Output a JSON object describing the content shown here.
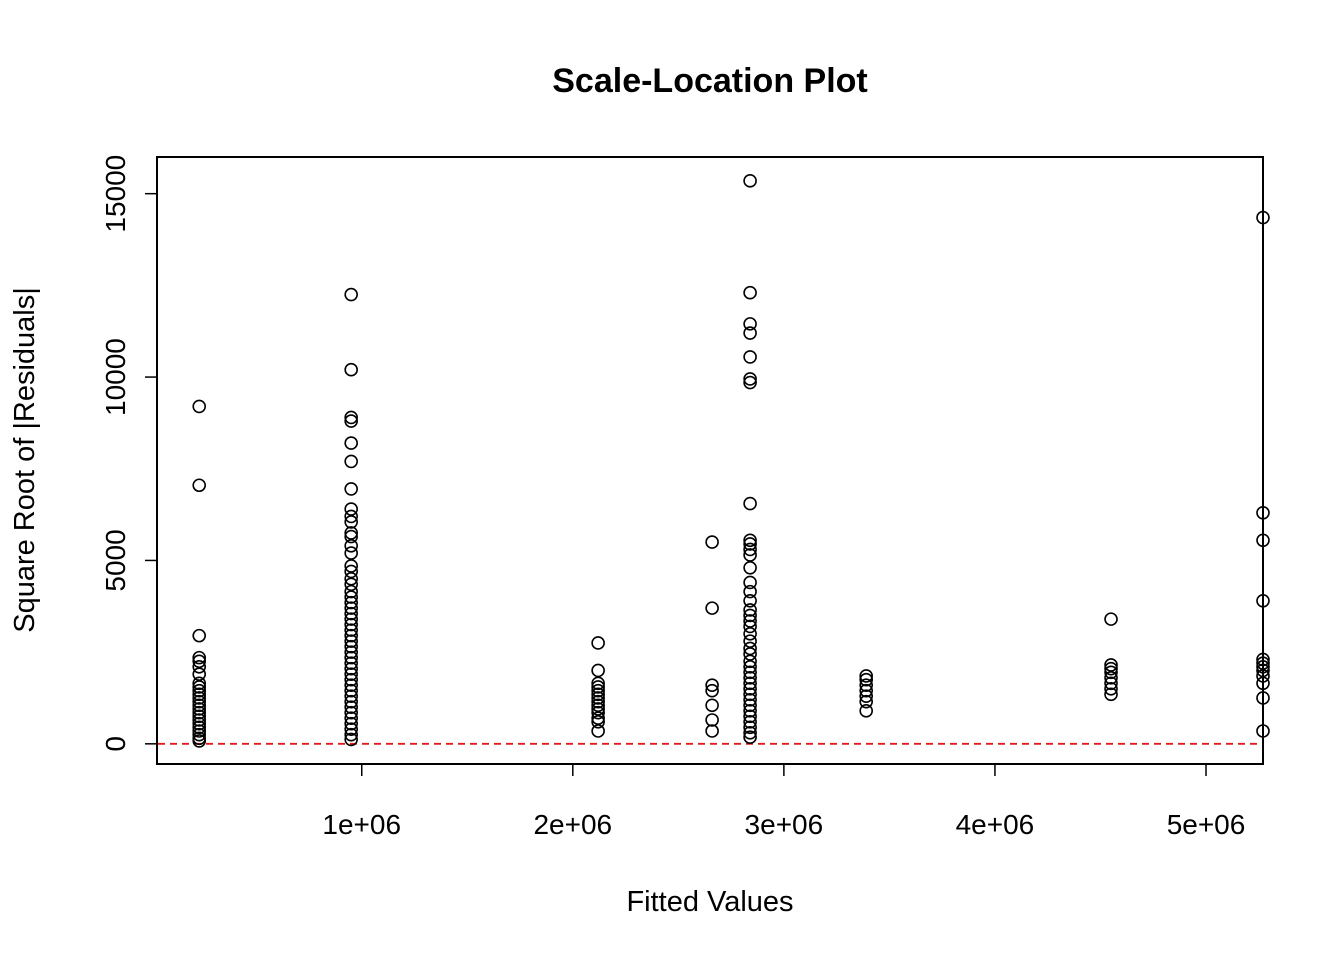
{
  "chart_data": {
    "type": "scatter",
    "title": "Scale-Location Plot",
    "xlabel": "Fitted Values",
    "ylabel": "Square Root of |Residuals|",
    "xlim": [
      30000,
      5270000
    ],
    "ylim": [
      -550,
      16000
    ],
    "x_ticks": [
      {
        "value": 1000000,
        "label": "1e+06"
      },
      {
        "value": 2000000,
        "label": "2e+06"
      },
      {
        "value": 3000000,
        "label": "3e+06"
      },
      {
        "value": 4000000,
        "label": "4e+06"
      },
      {
        "value": 5000000,
        "label": "5e+06"
      }
    ],
    "y_ticks": [
      {
        "value": 0,
        "label": "0"
      },
      {
        "value": 5000,
        "label": "5000"
      },
      {
        "value": 10000,
        "label": "10000"
      },
      {
        "value": 15000,
        "label": "15000"
      }
    ],
    "reference_line": {
      "y": 0,
      "color": "#e41a1c",
      "style": "dashed"
    },
    "grid": false,
    "series": [
      {
        "marker": "open-circle",
        "color": "#000000",
        "points": [
          [
            230000,
            9200
          ],
          [
            230000,
            7050
          ],
          [
            230000,
            2950
          ],
          [
            230000,
            2350
          ],
          [
            230000,
            2250
          ],
          [
            230000,
            2100
          ],
          [
            230000,
            1900
          ],
          [
            230000,
            1650
          ],
          [
            230000,
            1550
          ],
          [
            230000,
            1450
          ],
          [
            230000,
            1350
          ],
          [
            230000,
            1250
          ],
          [
            230000,
            1150
          ],
          [
            230000,
            1050
          ],
          [
            230000,
            950
          ],
          [
            230000,
            850
          ],
          [
            230000,
            750
          ],
          [
            230000,
            650
          ],
          [
            230000,
            550
          ],
          [
            230000,
            450
          ],
          [
            230000,
            350
          ],
          [
            230000,
            250
          ],
          [
            230000,
            150
          ],
          [
            230000,
            80
          ],
          [
            950000,
            12250
          ],
          [
            950000,
            10200
          ],
          [
            950000,
            8900
          ],
          [
            950000,
            8800
          ],
          [
            950000,
            8200
          ],
          [
            950000,
            7700
          ],
          [
            950000,
            6950
          ],
          [
            950000,
            6400
          ],
          [
            950000,
            6200
          ],
          [
            950000,
            6050
          ],
          [
            950000,
            5750
          ],
          [
            950000,
            5650
          ],
          [
            950000,
            5400
          ],
          [
            950000,
            5200
          ],
          [
            950000,
            4850
          ],
          [
            950000,
            4700
          ],
          [
            950000,
            4500
          ],
          [
            950000,
            4350
          ],
          [
            950000,
            4150
          ],
          [
            950000,
            4000
          ],
          [
            950000,
            3850
          ],
          [
            950000,
            3700
          ],
          [
            950000,
            3550
          ],
          [
            950000,
            3400
          ],
          [
            950000,
            3250
          ],
          [
            950000,
            3100
          ],
          [
            950000,
            2950
          ],
          [
            950000,
            2800
          ],
          [
            950000,
            2650
          ],
          [
            950000,
            2500
          ],
          [
            950000,
            2350
          ],
          [
            950000,
            2200
          ],
          [
            950000,
            2050
          ],
          [
            950000,
            1900
          ],
          [
            950000,
            1750
          ],
          [
            950000,
            1600
          ],
          [
            950000,
            1450
          ],
          [
            950000,
            1300
          ],
          [
            950000,
            1150
          ],
          [
            950000,
            1000
          ],
          [
            950000,
            850
          ],
          [
            950000,
            700
          ],
          [
            950000,
            550
          ],
          [
            950000,
            400
          ],
          [
            950000,
            250
          ],
          [
            950000,
            120
          ],
          [
            2120000,
            2750
          ],
          [
            2120000,
            2000
          ],
          [
            2120000,
            1650
          ],
          [
            2120000,
            1550
          ],
          [
            2120000,
            1450
          ],
          [
            2120000,
            1350
          ],
          [
            2120000,
            1250
          ],
          [
            2120000,
            1150
          ],
          [
            2120000,
            1050
          ],
          [
            2120000,
            950
          ],
          [
            2120000,
            850
          ],
          [
            2120000,
            700
          ],
          [
            2120000,
            600
          ],
          [
            2120000,
            350
          ],
          [
            2660000,
            5500
          ],
          [
            2660000,
            3700
          ],
          [
            2660000,
            1600
          ],
          [
            2660000,
            1450
          ],
          [
            2660000,
            1050
          ],
          [
            2660000,
            650
          ],
          [
            2660000,
            350
          ],
          [
            2840000,
            15350
          ],
          [
            2840000,
            12300
          ],
          [
            2840000,
            11450
          ],
          [
            2840000,
            11200
          ],
          [
            2840000,
            10550
          ],
          [
            2840000,
            9950
          ],
          [
            2840000,
            9850
          ],
          [
            2840000,
            6550
          ],
          [
            2840000,
            5550
          ],
          [
            2840000,
            5450
          ],
          [
            2840000,
            5300
          ],
          [
            2840000,
            5150
          ],
          [
            2840000,
            4800
          ],
          [
            2840000,
            4400
          ],
          [
            2840000,
            4150
          ],
          [
            2840000,
            3900
          ],
          [
            2840000,
            3650
          ],
          [
            2840000,
            3500
          ],
          [
            2840000,
            3350
          ],
          [
            2840000,
            3200
          ],
          [
            2840000,
            3000
          ],
          [
            2840000,
            2800
          ],
          [
            2840000,
            2600
          ],
          [
            2840000,
            2450
          ],
          [
            2840000,
            2250
          ],
          [
            2840000,
            2100
          ],
          [
            2840000,
            1950
          ],
          [
            2840000,
            1800
          ],
          [
            2840000,
            1650
          ],
          [
            2840000,
            1500
          ],
          [
            2840000,
            1350
          ],
          [
            2840000,
            1200
          ],
          [
            2840000,
            1050
          ],
          [
            2840000,
            900
          ],
          [
            2840000,
            750
          ],
          [
            2840000,
            600
          ],
          [
            2840000,
            450
          ],
          [
            2840000,
            300
          ],
          [
            2840000,
            180
          ],
          [
            3390000,
            1850
          ],
          [
            3390000,
            1750
          ],
          [
            3390000,
            1600
          ],
          [
            3390000,
            1450
          ],
          [
            3390000,
            1300
          ],
          [
            3390000,
            1150
          ],
          [
            3390000,
            900
          ],
          [
            4550000,
            3400
          ],
          [
            4550000,
            2150
          ],
          [
            4550000,
            2050
          ],
          [
            4550000,
            1950
          ],
          [
            4550000,
            1800
          ],
          [
            4550000,
            1650
          ],
          [
            4550000,
            1500
          ],
          [
            4550000,
            1350
          ],
          [
            5270000,
            14350
          ],
          [
            5270000,
            6300
          ],
          [
            5270000,
            5550
          ],
          [
            5270000,
            3900
          ],
          [
            5270000,
            2300
          ],
          [
            5270000,
            2200
          ],
          [
            5270000,
            2100
          ],
          [
            5270000,
            2000
          ],
          [
            5270000,
            1850
          ],
          [
            5270000,
            1650
          ],
          [
            5270000,
            1250
          ],
          [
            5270000,
            350
          ]
        ]
      }
    ]
  }
}
